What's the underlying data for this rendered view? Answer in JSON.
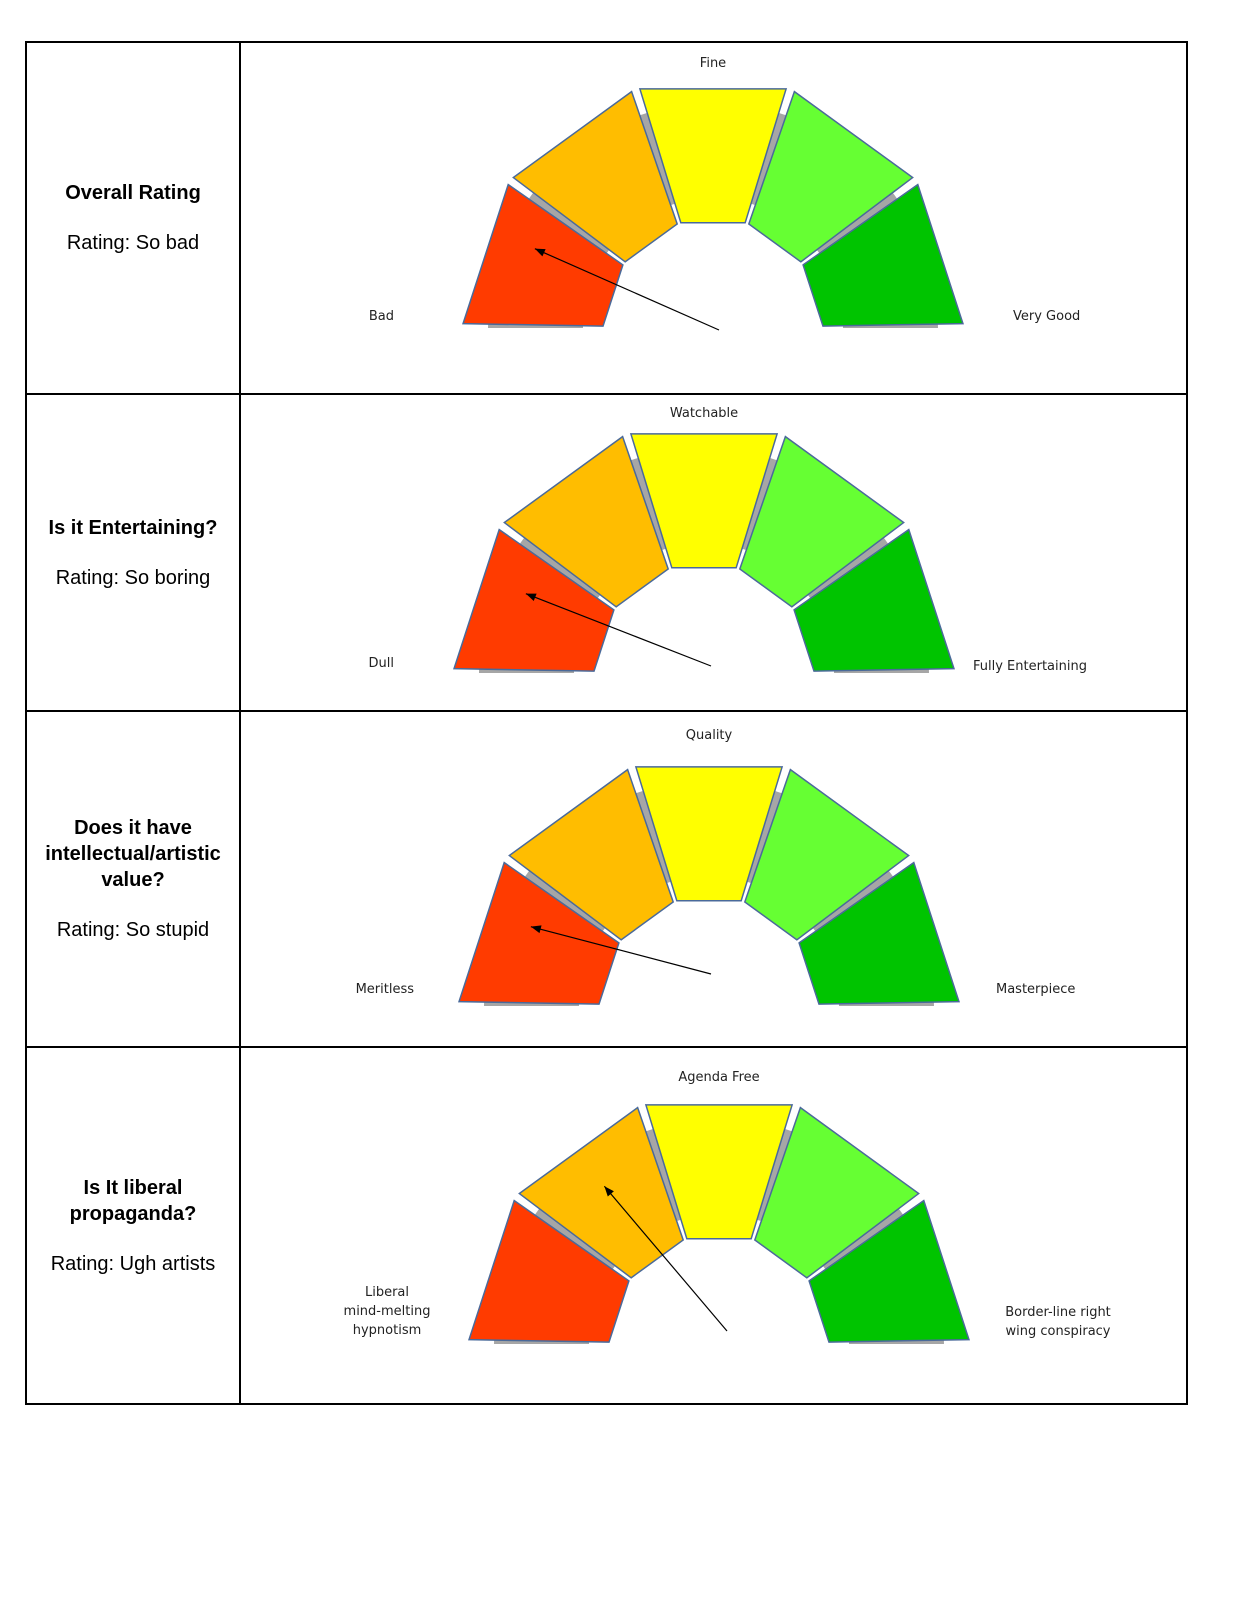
{
  "colors": {
    "segments": [
      "#ff3b00",
      "#ffbd00",
      "#ffff00",
      "#66ff33",
      "#00c400"
    ],
    "track": "#a6a6a6",
    "segment_stroke": "#4a6a9a",
    "needle": "#000000"
  },
  "chart_data": [
    {
      "type": "gauge",
      "question": "Overall Rating",
      "rating_text": "Rating: So bad",
      "segments": 5,
      "labels": {
        "left": "Bad",
        "top": "Fine",
        "right": "Very Good"
      },
      "selected_segment": 0
    },
    {
      "type": "gauge",
      "question": "Is it Entertaining?",
      "rating_text": "Rating: So boring",
      "segments": 5,
      "labels": {
        "left": "Dull",
        "top": "Watchable",
        "right": "Fully Entertaining"
      },
      "selected_segment": 0
    },
    {
      "type": "gauge",
      "question": "Does it have intellectual/artistic value?",
      "rating_text": "Rating: So stupid",
      "segments": 5,
      "labels": {
        "left": "Meritless",
        "top": "Quality",
        "right": "Masterpiece"
      },
      "selected_segment": 0
    },
    {
      "type": "gauge",
      "question": "Is It liberal propaganda?",
      "rating_text": "Rating: Ugh artists",
      "segments": 5,
      "labels": {
        "left": "Liberal mind-melting hypnotism",
        "top": "Agenda Free",
        "right": "Border-line right wing conspiracy"
      },
      "selected_segment": 1
    }
  ]
}
